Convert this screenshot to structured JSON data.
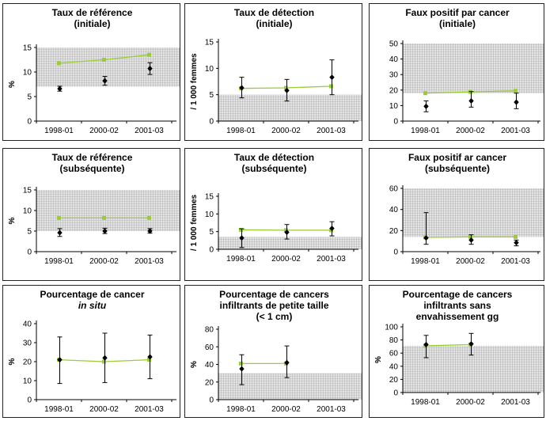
{
  "charts": [
    {
      "title_lines": [
        "Taux de référence",
        "(initiale)"
      ],
      "ylabel": "%",
      "ylim": [
        0,
        15
      ],
      "yticks": [
        0,
        5,
        10,
        15
      ],
      "shade": [
        7,
        15
      ],
      "chart_data": {
        "type": "line",
        "categories": [
          "1998-01",
          "2000-02",
          "2001-03"
        ],
        "series": [
          {
            "role": "target",
            "color": "#9acd32",
            "values": [
              11.8,
              12.5,
              13.5
            ]
          },
          {
            "role": "observed",
            "color": "#000000",
            "values": [
              6.6,
              8.2,
              10.7
            ],
            "errors": [
              [
                6.1,
                7.1
              ],
              [
                7.3,
                9.1
              ],
              [
                9.5,
                11.9
              ]
            ]
          }
        ]
      }
    },
    {
      "title_lines": [
        "Taux de détection",
        "(initiale)"
      ],
      "ylabel": "/ 1 000 femmes",
      "ylim": [
        0,
        15
      ],
      "yticks": [
        0,
        5,
        10,
        15
      ],
      "shade": [
        0,
        5
      ],
      "chart_data": {
        "type": "line",
        "categories": [
          "1998-01",
          "2000-02",
          "2001-03"
        ],
        "series": [
          {
            "role": "target",
            "color": "#9acd32",
            "values": [
              6.2,
              6.3,
              6.6
            ]
          },
          {
            "role": "observed",
            "color": "#000000",
            "values": [
              6.3,
              5.8,
              8.3
            ],
            "errors": [
              [
                4.4,
                8.3
              ],
              [
                3.8,
                7.9
              ],
              [
                5.0,
                11.6
              ]
            ]
          }
        ]
      }
    },
    {
      "title_lines": [
        "Faux positif par cancer",
        "(initiale)"
      ],
      "ylabel": "",
      "ylim": [
        0,
        50
      ],
      "yticks": [
        0,
        10,
        20,
        30,
        40,
        50
      ],
      "shade": [
        18,
        50
      ],
      "chart_data": {
        "type": "line",
        "categories": [
          "1998-01",
          "2000-02",
          "2001-03"
        ],
        "series": [
          {
            "role": "target",
            "color": "#9acd32",
            "values": [
              18,
              18.8,
              19.5
            ]
          },
          {
            "role": "observed",
            "color": "#000000",
            "values": [
              9.5,
              13,
              12.2
            ],
            "errors": [
              [
                6,
                13
              ],
              [
                9,
                19
              ],
              [
                8,
                18
              ]
            ]
          }
        ]
      }
    },
    {
      "title_lines": [
        "Taux de référence",
        "(subséquente)"
      ],
      "ylabel": "%",
      "ylim": [
        0,
        15
      ],
      "yticks": [
        0,
        5,
        10,
        15
      ],
      "shade": [
        5,
        15
      ],
      "chart_data": {
        "type": "line",
        "categories": [
          "1998-01",
          "2000-02",
          "2001-03"
        ],
        "series": [
          {
            "role": "target",
            "color": "#9acd32",
            "values": [
              8.2,
              8.2,
              8.2
            ]
          },
          {
            "role": "observed",
            "color": "#000000",
            "values": [
              4.6,
              5.0,
              5.0
            ],
            "errors": [
              [
                3.7,
                5.6
              ],
              [
                4.4,
                5.7
              ],
              [
                4.5,
                5.6
              ]
            ]
          }
        ]
      }
    },
    {
      "title_lines": [
        "Taux de détection",
        "(subséquente)"
      ],
      "ylabel": "/ 1 000 femmes",
      "ylim": [
        0,
        15
      ],
      "yticks": [
        0,
        5,
        10,
        15
      ],
      "shade": [
        0,
        3.5
      ],
      "chart_data": {
        "type": "line",
        "categories": [
          "1998-01",
          "2000-02",
          "2001-03"
        ],
        "series": [
          {
            "role": "target",
            "color": "#9acd32",
            "values": [
              5.5,
              5.4,
              5.4
            ]
          },
          {
            "role": "observed",
            "color": "#000000",
            "values": [
              3.2,
              4.8,
              5.9
            ],
            "errors": [
              [
                0.5,
                5.8
              ],
              [
                2.9,
                7.0
              ],
              [
                3.8,
                7.8
              ]
            ]
          }
        ]
      }
    },
    {
      "title_lines": [
        "Faux positif ar cancer",
        "(subséquente)"
      ],
      "ylabel": "",
      "ylim": [
        0,
        60
      ],
      "yticks": [
        0,
        20,
        40,
        60
      ],
      "shade": [
        14,
        60
      ],
      "chart_data": {
        "type": "line",
        "categories": [
          "1998-01",
          "2000-02",
          "2001-03"
        ],
        "series": [
          {
            "role": "target",
            "color": "#9acd32",
            "values": [
              13.5,
              14,
              14
            ]
          },
          {
            "role": "observed",
            "color": "#000000",
            "values": [
              13,
              11,
              8.5
            ],
            "errors": [
              [
                7,
                37
              ],
              [
                7,
                16
              ],
              [
                5.5,
                11
              ]
            ]
          }
        ]
      }
    },
    {
      "title_lines": [
        "Pourcentage de cancer",
        "in situ"
      ],
      "title_italic_line": 1,
      "ylabel": "%",
      "ylim": [
        0,
        40
      ],
      "yticks": [
        0,
        10,
        20,
        30,
        40
      ],
      "shade": null,
      "chart_data": {
        "type": "line",
        "categories": [
          "1998-01",
          "2000-02",
          "2001-03"
        ],
        "series": [
          {
            "role": "target",
            "color": "#9acd32",
            "values": [
              21,
              20,
              21
            ]
          },
          {
            "role": "observed",
            "color": "#000000",
            "values": [
              21,
              22,
              22.5
            ],
            "errors": [
              [
                8.5,
                33
              ],
              [
                9,
                35
              ],
              [
                11,
                34
              ]
            ]
          }
        ]
      }
    },
    {
      "title_lines": [
        "Pourcentage de cancers",
        "infiltrants de petite taille",
        "(< 1 cm)"
      ],
      "ylabel": "%",
      "ylim": [
        0,
        80
      ],
      "yticks": [
        0,
        20,
        40,
        60,
        80
      ],
      "shade": [
        0,
        30
      ],
      "chart_data": {
        "type": "line",
        "categories": [
          "1998-01",
          "2000-02",
          "2001-03"
        ],
        "series": [
          {
            "role": "target",
            "color": "#9acd32",
            "values": [
              41,
              41,
              null
            ]
          },
          {
            "role": "observed",
            "color": "#000000",
            "values": [
              35,
              42,
              null
            ],
            "errors": [
              [
                17,
                51
              ],
              [
                25,
                61
              ],
              null
            ]
          }
        ]
      }
    },
    {
      "title_lines": [
        "Pourcentage de cancers",
        "infiltrants sans",
        "envahissement gg"
      ],
      "ylabel": "%",
      "ylim": [
        0,
        100
      ],
      "yticks": [
        0,
        20,
        40,
        60,
        80,
        100
      ],
      "shade": [
        0,
        71
      ],
      "chart_data": {
        "type": "line",
        "categories": [
          "1998-01",
          "2000-02",
          "2001-03"
        ],
        "series": [
          {
            "role": "target",
            "color": "#9acd32",
            "values": [
              71,
              73,
              null
            ]
          },
          {
            "role": "observed",
            "color": "#000000",
            "values": [
              73,
              74,
              null
            ],
            "errors": [
              [
                53,
                87
              ],
              [
                57,
                90
              ],
              null
            ]
          }
        ]
      }
    }
  ]
}
